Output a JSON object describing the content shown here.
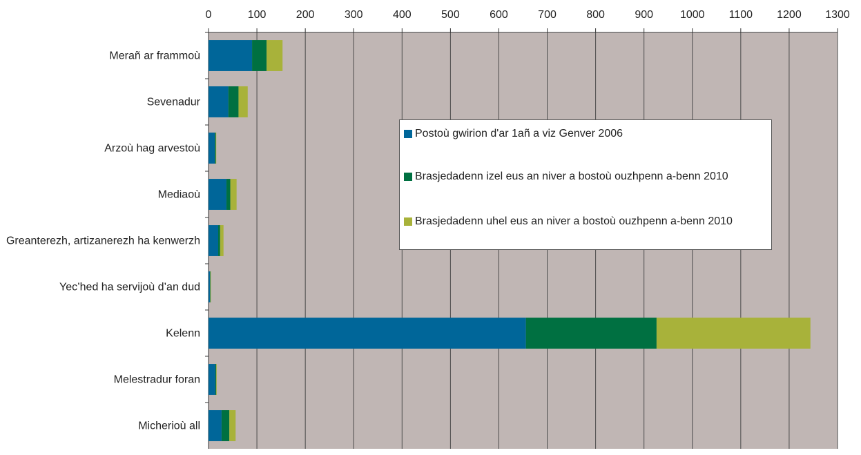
{
  "chart_data": {
    "type": "stacked_barh",
    "categories": [
      "Merañ ar frammoù",
      "Sevenadur",
      "Arzoù hag arvestoù",
      "Mediaoù",
      "Greanterezh, artizanerezh ha kenwerzh",
      "Yec’hed ha servijoù d’an dud",
      "Kelenn",
      "Melestradur foran",
      "Micherioù all"
    ],
    "series": [
      {
        "name": "Postoù gwirion d'ar 1añ a viz Genver 2006",
        "color": "#006699",
        "values": [
          90,
          41,
          13,
          37,
          20,
          3,
          656,
          14,
          27
        ]
      },
      {
        "name": "Brasjedadenn izel eus an niver a bostoù ouzhpenn a-benn 2010",
        "color": "#007041",
        "values": [
          30,
          21,
          2,
          8,
          4,
          1,
          270,
          2,
          16
        ]
      },
      {
        "name": "Brasjedadenn uhel eus an niver a bostoù ouzhpenn a-benn 2010",
        "color": "#a8b23a",
        "values": [
          33,
          19,
          1,
          13,
          7,
          1,
          318,
          1,
          13
        ]
      }
    ],
    "xlim": [
      0,
      1300
    ],
    "xticks": [
      0,
      100,
      200,
      300,
      400,
      500,
      600,
      700,
      800,
      900,
      1000,
      1100,
      1200,
      1300
    ],
    "grid": true
  }
}
